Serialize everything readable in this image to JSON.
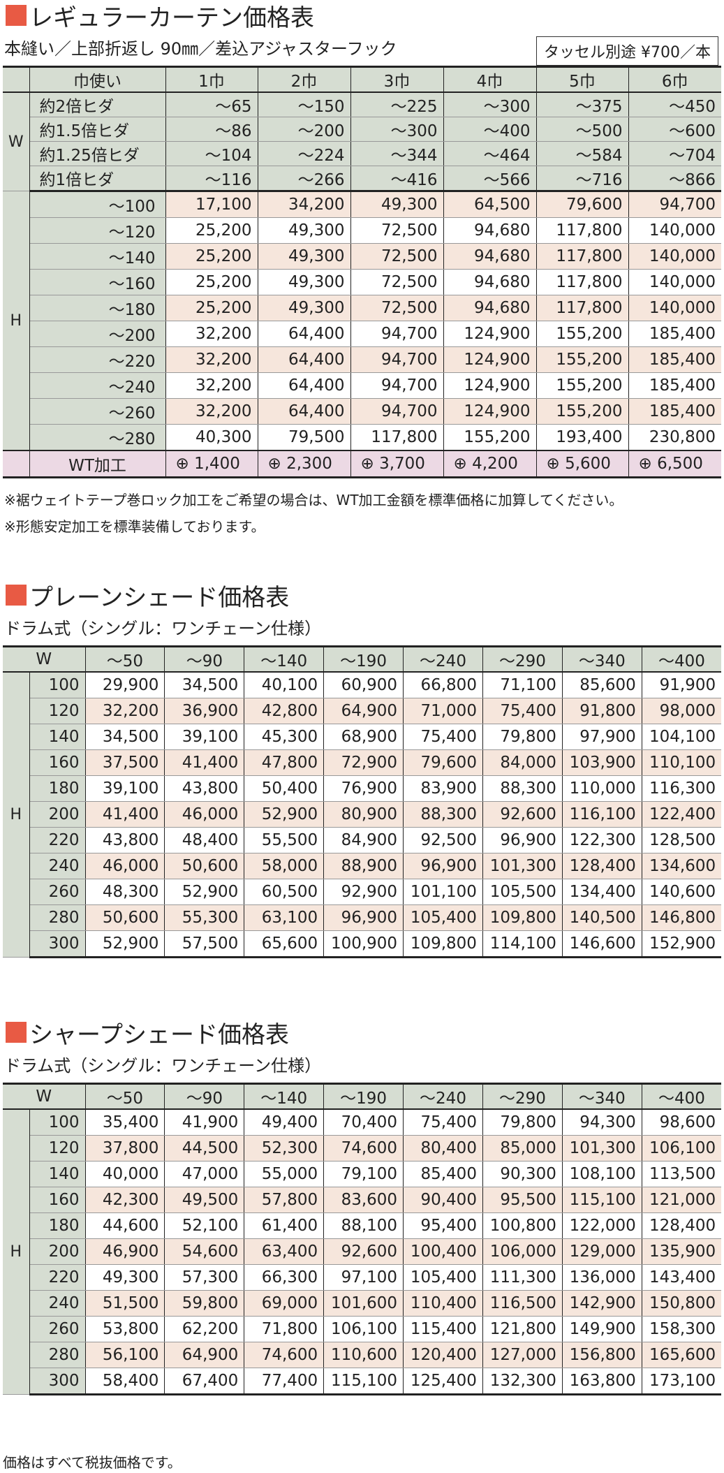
{
  "curtain": {
    "title": "レギュラーカーテン価格表",
    "subtitle": "本縫い／上部折返し 90㎜／差込アジャスターフック",
    "tassel": "タッセル別途 ¥700／本",
    "header": [
      "巾使い",
      "1巾",
      "2巾",
      "3巾",
      "4巾",
      "5巾",
      "6巾"
    ],
    "w_axis": "W",
    "h_axis": "H",
    "w_rows": [
      {
        "label": "約2倍ヒダ",
        "values": [
          "～65",
          "～150",
          "～225",
          "～300",
          "～375",
          "～450"
        ]
      },
      {
        "label": "約1.5倍ヒダ",
        "values": [
          "～86",
          "～200",
          "～300",
          "～400",
          "～500",
          "～600"
        ]
      },
      {
        "label": "約1.25倍ヒダ",
        "values": [
          "～104",
          "～224",
          "～344",
          "～464",
          "～584",
          "～704"
        ]
      },
      {
        "label": "約1倍ヒダ",
        "values": [
          "～116",
          "～266",
          "～416",
          "～566",
          "～716",
          "～866"
        ]
      }
    ],
    "h_rows": [
      {
        "label": "～100",
        "values": [
          "17,100",
          "34,200",
          "49,300",
          "64,500",
          "79,600",
          "94,700"
        ]
      },
      {
        "label": "～120",
        "values": [
          "25,200",
          "49,300",
          "72,500",
          "94,680",
          "117,800",
          "140,000"
        ]
      },
      {
        "label": "～140",
        "values": [
          "25,200",
          "49,300",
          "72,500",
          "94,680",
          "117,800",
          "140,000"
        ]
      },
      {
        "label": "～160",
        "values": [
          "25,200",
          "49,300",
          "72,500",
          "94,680",
          "117,800",
          "140,000"
        ]
      },
      {
        "label": "～180",
        "values": [
          "25,200",
          "49,300",
          "72,500",
          "94,680",
          "117,800",
          "140,000"
        ]
      },
      {
        "label": "～200",
        "values": [
          "32,200",
          "64,400",
          "94,700",
          "124,900",
          "155,200",
          "185,400"
        ]
      },
      {
        "label": "～220",
        "values": [
          "32,200",
          "64,400",
          "94,700",
          "124,900",
          "155,200",
          "185,400"
        ]
      },
      {
        "label": "～240",
        "values": [
          "32,200",
          "64,400",
          "94,700",
          "124,900",
          "155,200",
          "185,400"
        ]
      },
      {
        "label": "～260",
        "values": [
          "32,200",
          "64,400",
          "94,700",
          "124,900",
          "155,200",
          "185,400"
        ]
      },
      {
        "label": "～280",
        "values": [
          "40,300",
          "79,500",
          "117,800",
          "155,200",
          "193,400",
          "230,800"
        ]
      }
    ],
    "wt": {
      "label": "WT加工",
      "values": [
        "⊕ 1,400",
        "⊕ 2,300",
        "⊕ 3,700",
        "⊕ 4,200",
        "⊕ 5,600",
        "⊕ 6,500"
      ]
    },
    "note1": "※裾ウェイトテープ巻ロック加工をご希望の場合は、WT加工金額を標準価格に加算してください。",
    "note2": "※形態安定加工を標準装備しております。"
  },
  "plain": {
    "title": "プレーンシェード価格表",
    "subtitle": "ドラム式（シングル：ワンチェーン仕様）",
    "w_axis": "W",
    "h_axis": "H",
    "header": [
      "～50",
      "～90",
      "～140",
      "～190",
      "～240",
      "～290",
      "～340",
      "～400"
    ],
    "rows": [
      {
        "h": "100",
        "values": [
          "29,900",
          "34,500",
          "40,100",
          "60,900",
          "66,800",
          "71,100",
          "85,600",
          "91,900"
        ]
      },
      {
        "h": "120",
        "values": [
          "32,200",
          "36,900",
          "42,800",
          "64,900",
          "71,000",
          "75,400",
          "91,800",
          "98,000"
        ]
      },
      {
        "h": "140",
        "values": [
          "34,500",
          "39,100",
          "45,300",
          "68,900",
          "75,400",
          "79,800",
          "97,900",
          "104,100"
        ]
      },
      {
        "h": "160",
        "values": [
          "37,500",
          "41,400",
          "47,800",
          "72,900",
          "79,600",
          "84,000",
          "103,900",
          "110,100"
        ]
      },
      {
        "h": "180",
        "values": [
          "39,100",
          "43,800",
          "50,400",
          "76,900",
          "83,900",
          "88,300",
          "110,000",
          "116,300"
        ]
      },
      {
        "h": "200",
        "values": [
          "41,400",
          "46,000",
          "52,900",
          "80,900",
          "88,300",
          "92,600",
          "116,100",
          "122,400"
        ]
      },
      {
        "h": "220",
        "values": [
          "43,800",
          "48,400",
          "55,500",
          "84,900",
          "92,500",
          "96,900",
          "122,300",
          "128,500"
        ]
      },
      {
        "h": "240",
        "values": [
          "46,000",
          "50,600",
          "58,000",
          "88,900",
          "96,900",
          "101,300",
          "128,400",
          "134,600"
        ]
      },
      {
        "h": "260",
        "values": [
          "48,300",
          "52,900",
          "60,500",
          "92,900",
          "101,100",
          "105,500",
          "134,400",
          "140,600"
        ]
      },
      {
        "h": "280",
        "values": [
          "50,600",
          "55,300",
          "63,100",
          "96,900",
          "105,400",
          "109,800",
          "140,500",
          "146,800"
        ]
      },
      {
        "h": "300",
        "values": [
          "52,900",
          "57,500",
          "65,600",
          "100,900",
          "109,800",
          "114,100",
          "146,600",
          "152,900"
        ]
      }
    ]
  },
  "sharp": {
    "title": "シャープシェード価格表",
    "subtitle": "ドラム式（シングル：ワンチェーン仕様）",
    "w_axis": "W",
    "h_axis": "H",
    "header": [
      "～50",
      "～90",
      "～140",
      "～190",
      "～240",
      "～290",
      "～340",
      "～400"
    ],
    "rows": [
      {
        "h": "100",
        "values": [
          "35,400",
          "41,900",
          "49,400",
          "70,400",
          "75,400",
          "79,800",
          "94,300",
          "98,600"
        ]
      },
      {
        "h": "120",
        "values": [
          "37,800",
          "44,500",
          "52,300",
          "74,600",
          "80,400",
          "85,000",
          "101,300",
          "106,100"
        ]
      },
      {
        "h": "140",
        "values": [
          "40,000",
          "47,000",
          "55,000",
          "79,100",
          "85,400",
          "90,300",
          "108,100",
          "113,500"
        ]
      },
      {
        "h": "160",
        "values": [
          "42,300",
          "49,500",
          "57,800",
          "83,600",
          "90,400",
          "95,500",
          "115,100",
          "121,000"
        ]
      },
      {
        "h": "180",
        "values": [
          "44,600",
          "52,100",
          "61,400",
          "88,100",
          "95,400",
          "100,800",
          "122,000",
          "128,400"
        ]
      },
      {
        "h": "200",
        "values": [
          "46,900",
          "54,600",
          "63,400",
          "92,600",
          "100,400",
          "106,000",
          "129,000",
          "135,900"
        ]
      },
      {
        "h": "220",
        "values": [
          "49,300",
          "57,300",
          "66,300",
          "97,100",
          "105,400",
          "111,300",
          "136,000",
          "143,400"
        ]
      },
      {
        "h": "240",
        "values": [
          "51,500",
          "59,800",
          "69,000",
          "101,600",
          "110,400",
          "116,500",
          "142,900",
          "150,800"
        ]
      },
      {
        "h": "260",
        "values": [
          "53,800",
          "62,200",
          "71,800",
          "106,100",
          "115,400",
          "121,800",
          "149,900",
          "158,300"
        ]
      },
      {
        "h": "280",
        "values": [
          "56,100",
          "64,900",
          "74,600",
          "110,600",
          "120,400",
          "127,000",
          "156,800",
          "165,600"
        ]
      },
      {
        "h": "300",
        "values": [
          "58,400",
          "67,400",
          "77,400",
          "115,100",
          "125,400",
          "132,300",
          "163,800",
          "173,100"
        ]
      }
    ]
  },
  "footer": "価格はすべて税抜価格です。"
}
